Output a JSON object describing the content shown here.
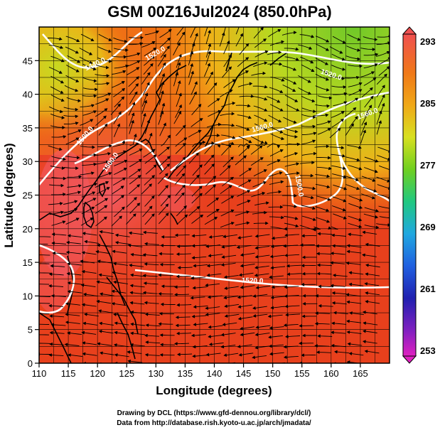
{
  "title": "GSM 00Z16Jul2024 (850.0hPa)",
  "x_axis_label": "Longitude (degrees)",
  "y_axis_label": "Latitude  (degrees)",
  "x_ticks": [
    "110",
    "115",
    "120",
    "125",
    "130",
    "135",
    "140",
    "145",
    "150",
    "155",
    "160",
    "165"
  ],
  "y_ticks": [
    "0",
    "5",
    "10",
    "15",
    "20",
    "25",
    "30",
    "35",
    "40",
    "45"
  ],
  "colorbar": {
    "ticks": [
      "293",
      "285",
      "277",
      "269",
      "261",
      "253"
    ],
    "range": [
      253,
      293
    ]
  },
  "contour_labels": [
    "1440.0",
    "1500.0",
    "1500.0",
    "1560.0",
    "1560.0",
    "1500.0",
    "1520.0",
    "1520.0",
    "1520.0"
  ],
  "credits": {
    "line1": "Drawing by DCL (https://www.gfd-dennou.org/library/dcl/)",
    "line2": "Data from http://database.rish.kyoto-u.ac.jp/arch/jmadata/"
  },
  "colors": {
    "warm": "#e63b1a",
    "hot": "#f45060",
    "orange": "#f27a10",
    "yellow": "#d8e020",
    "green": "#7ec828"
  },
  "chart_data": {
    "type": "heatmap",
    "title": "GSM 00Z16Jul2024 (850.0hPa)",
    "xlabel": "Longitude (degrees)",
    "ylabel": "Latitude  (degrees)",
    "xlim": [
      110,
      170
    ],
    "ylim": [
      0,
      50
    ],
    "colorbar_range": [
      253,
      293
    ],
    "colorbar_ticks": [
      293,
      285,
      277,
      269,
      261,
      253
    ],
    "overlays": [
      "temperature shading",
      "geopotential height contours",
      "wind streamlines",
      "coastlines"
    ]
  }
}
